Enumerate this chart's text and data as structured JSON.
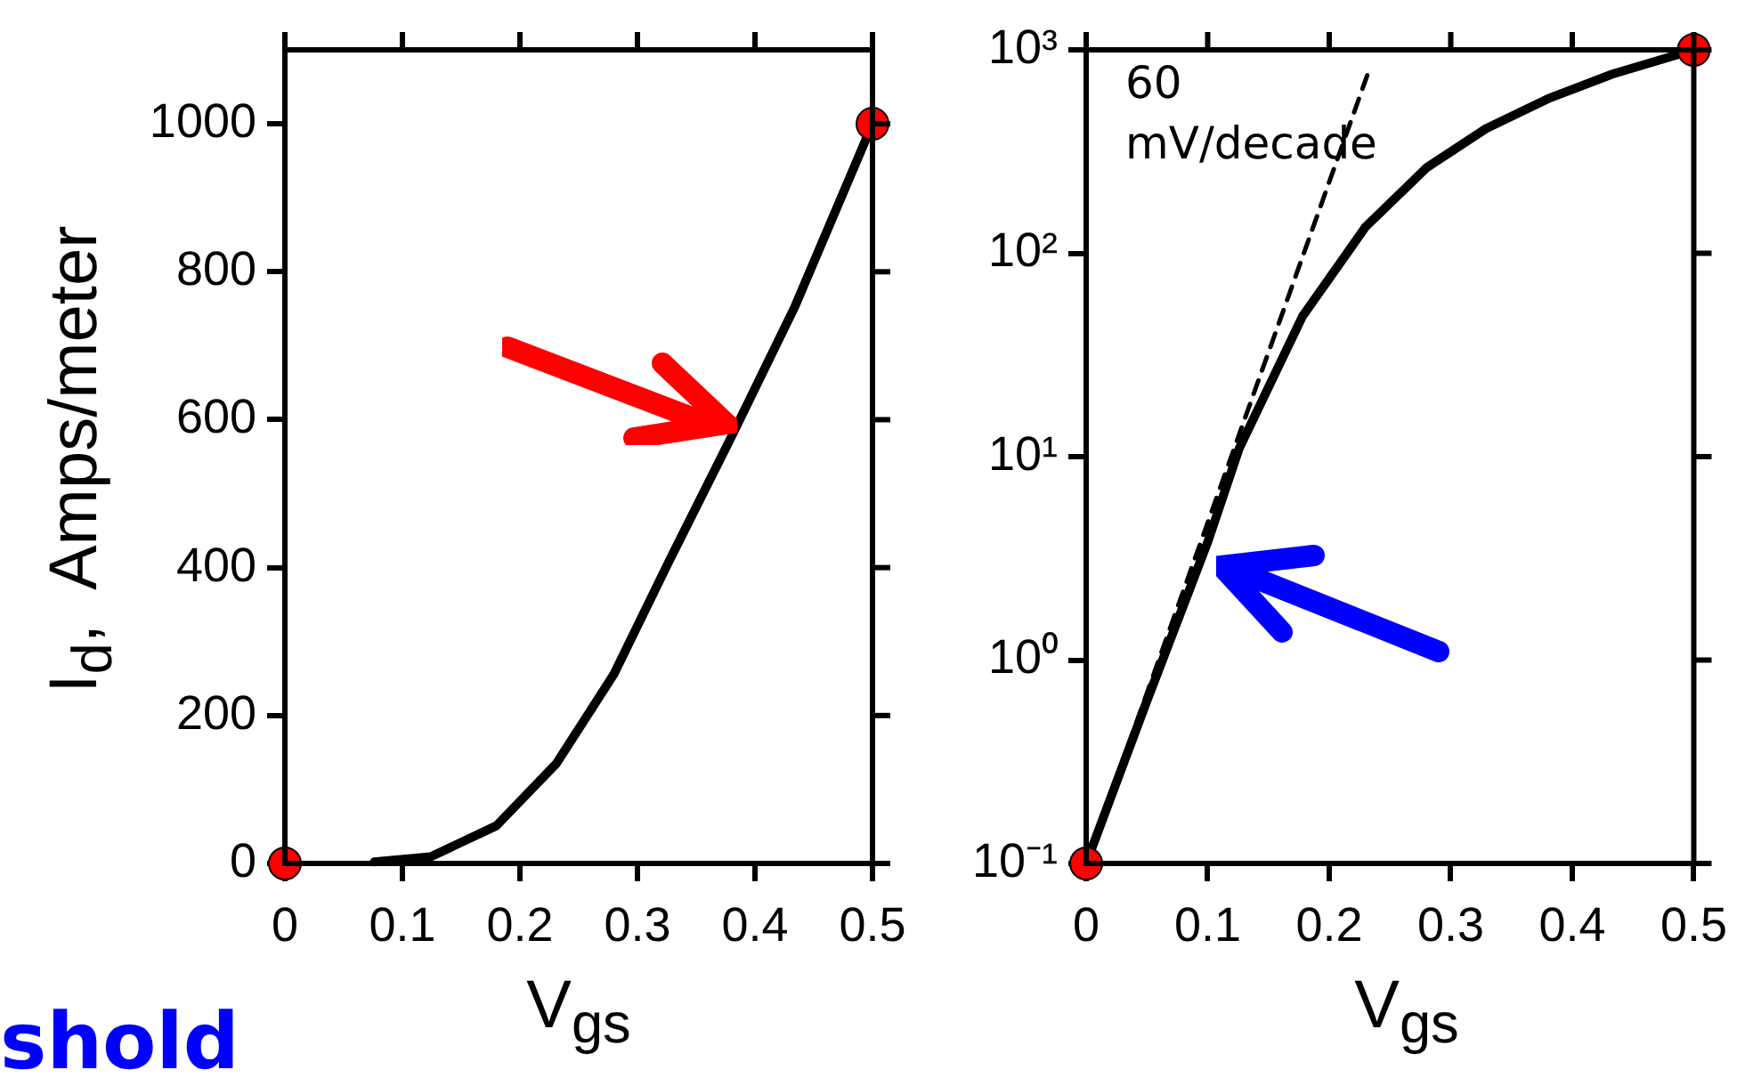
{
  "chart_data": [
    {
      "type": "line",
      "xlabel": "V$_{gs}$",
      "ylabel": "I$_{d}$,  Amps/meter",
      "xlim": [
        0,
        0.5
      ],
      "xticks": [
        0,
        0.1,
        0.2,
        0.3,
        0.4,
        0.5
      ],
      "ylim": [
        0,
        1100
      ],
      "yticks": [
        0,
        200,
        400,
        600,
        800,
        1000
      ],
      "grid": false,
      "legend": false,
      "annotations": [
        "shold"
      ],
      "series": [
        {
          "type": "line",
          "color": "#000000",
          "marker": "none",
          "line_style": "solid",
          "x": [
            0.076,
            0.124,
            0.18,
            0.231,
            0.28,
            0.327,
            0.38,
            0.434,
            0.5
          ],
          "values": [
            2,
            9,
            51,
            135,
            256,
            409,
            577,
            753,
            1000
          ]
        },
        {
          "type": "scatter",
          "color": "#ff0000",
          "marker": "circle",
          "x": [
            0,
            0.5
          ],
          "values": [
            0,
            1000
          ]
        }
      ]
    },
    {
      "type": "line",
      "xlabel": "V$_{gs}$",
      "xlim": [
        0,
        0.5
      ],
      "xticks": [
        0,
        0.1,
        0.2,
        0.3,
        0.4,
        0.5
      ],
      "log": "y",
      "ylim": [
        0.1,
        1000
      ],
      "yticks": [
        {
          "value": 0.1,
          "label": "10⁻¹"
        },
        {
          "value": 1,
          "label": "10⁰"
        },
        {
          "value": 10,
          "label": "10¹"
        },
        {
          "value": 100,
          "label": "10²"
        },
        {
          "value": 1000,
          "label": "10³"
        }
      ],
      "grid": false,
      "legend": false,
      "annotations": [
        "60 mV/decade"
      ],
      "series": [
        {
          "type": "line",
          "color": "#000000",
          "marker": "none",
          "line_style": "solid",
          "x": [
            0,
            0.05,
            0.1,
            0.126,
            0.178,
            0.23,
            0.28,
            0.329,
            0.38,
            0.433,
            0.5
          ],
          "values": [
            0.1,
            0.63,
            3.8,
            11,
            49,
            135,
            263,
            410,
            575,
            760,
            1000
          ]
        },
        {
          "type": "line",
          "color": "#000000",
          "marker": "none",
          "line_style": "dashed",
          "x": [
            0,
            0.233
          ],
          "values": [
            0.1,
            800
          ]
        },
        {
          "type": "scatter",
          "color": "#ff0000",
          "marker": "circle",
          "x": [
            0,
            0.5
          ],
          "values": [
            0.1,
            1000
          ]
        }
      ]
    }
  ]
}
